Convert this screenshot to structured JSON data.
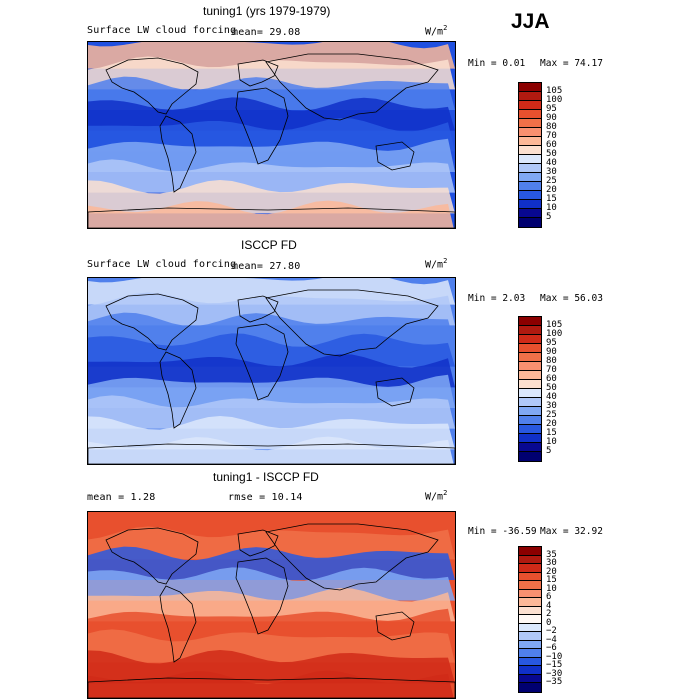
{
  "season": "JJA",
  "panels": [
    {
      "title": "tuning1 (yrs 1979-1979)",
      "variable": "Surface LW cloud forcing",
      "mean_text": "mean=  29.08",
      "units": "W/m",
      "units_exp": "2",
      "min_text": "Min =   0.01",
      "max_text": "Max =  74.17",
      "colorbar_key": "abs"
    },
    {
      "title": "ISCCP FD",
      "variable": "Surface LW cloud forcing",
      "mean_text": "mean=  27.80",
      "units": "W/m",
      "units_exp": "2",
      "min_text": "Min =   2.03",
      "max_text": "Max =  56.03",
      "colorbar_key": "abs"
    },
    {
      "title": "tuning1 - ISCCP FD",
      "variable": "",
      "mean_text": "mean =   1.28",
      "rmse_text": "rmse =  10.14",
      "units": "W/m",
      "units_exp": "2",
      "min_text": "Min = -36.59",
      "max_text": "Max =  32.92",
      "colorbar_key": "diff"
    }
  ],
  "colorbars": {
    "abs": {
      "levels": [
        "105",
        "100",
        "95",
        "90",
        "80",
        "70",
        "60",
        "50",
        "40",
        "30",
        "25",
        "20",
        "15",
        "10",
        "5"
      ],
      "colors": [
        "#8b0000",
        "#b01a10",
        "#d02a18",
        "#e8502e",
        "#f07048",
        "#f89070",
        "#fcb898",
        "#fce0d0",
        "#dce8fc",
        "#b0c8f8",
        "#80a8f4",
        "#5080ec",
        "#2858e0",
        "#1030c8",
        "#080890",
        "#000070"
      ]
    },
    "diff": {
      "levels": [
        "35",
        "30",
        "20",
        "15",
        "10",
        "6",
        "4",
        "2",
        "0",
        "−2",
        "−4",
        "−6",
        "−10",
        "−15",
        "−30",
        "−35"
      ],
      "colors": [
        "#8b0000",
        "#b01a10",
        "#d02a18",
        "#e8502e",
        "#f07048",
        "#f89070",
        "#fcb898",
        "#fce0d0",
        "#fff8f4",
        "#dce8fc",
        "#b0c8f8",
        "#80a8f4",
        "#5080ec",
        "#2858e0",
        "#1030c8",
        "#080890",
        "#000070"
      ]
    }
  },
  "map_fields": {
    "panel1": {
      "base": "#2050e0",
      "bands": [
        "#fcb898",
        "#fce0d0",
        "#5080ec",
        "#1030c8",
        "#2858e0",
        "#80a8f4",
        "#b0c8f8",
        "#fce0d0",
        "#fcb898"
      ]
    },
    "panel2": {
      "base": "#5080ec",
      "bands": [
        "#dce8fc",
        "#b0c8f8",
        "#5080ec",
        "#2858e0",
        "#1030c8",
        "#80a8f4",
        "#b0c8f8",
        "#dce8fc",
        "#dce8fc"
      ]
    },
    "panel3": {
      "base": "#e8502e",
      "bands": [
        "#e8502e",
        "#f07048",
        "#2858e0",
        "#80a8f4",
        "#fcb898",
        "#e8502e",
        "#f07048",
        "#d02a18",
        "#d02a18"
      ]
    }
  }
}
